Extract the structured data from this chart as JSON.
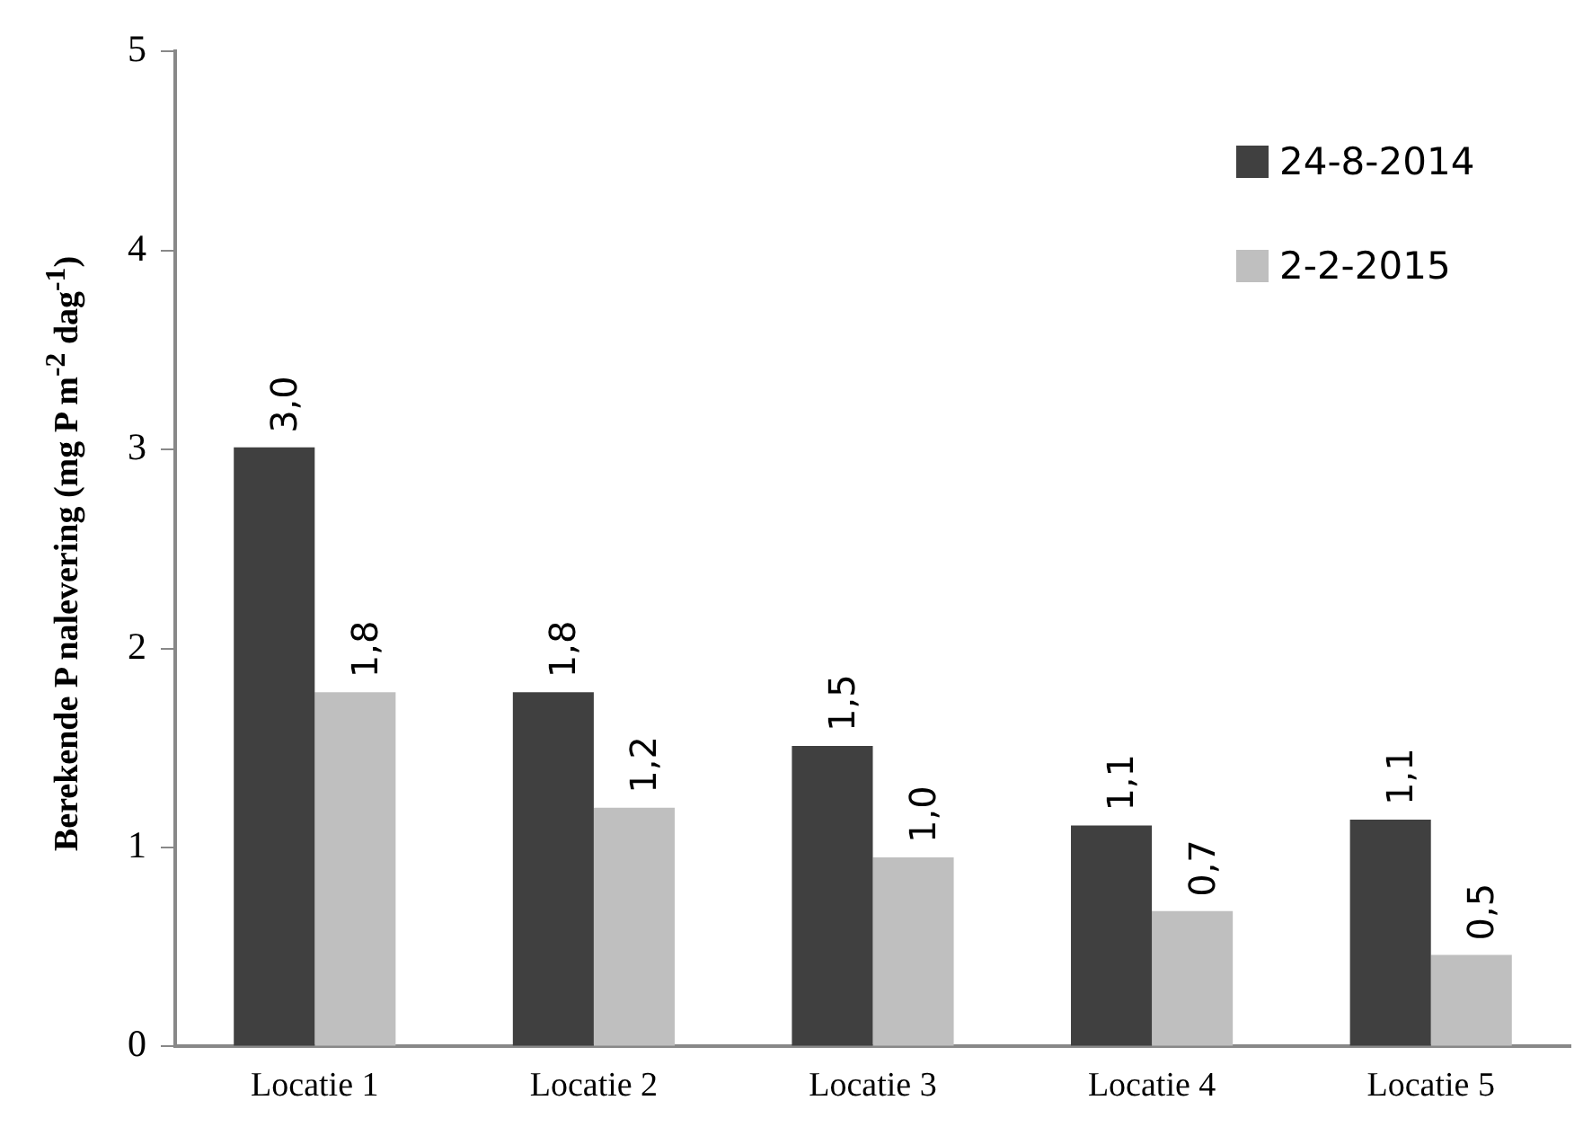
{
  "chart_data": {
    "type": "bar",
    "ylabel": "Berekende P nalevering (mg P m$^{-2}$ dag$^{-1}$)",
    "categories": [
      "Locatie 1",
      "Locatie 2",
      "Locatie 3",
      "Locatie 4",
      "Locatie 5"
    ],
    "series": [
      {
        "name": "24-8-2014",
        "color": "#404040",
        "values": [
          3.01,
          1.78,
          1.51,
          1.11,
          1.14
        ],
        "value_labels": [
          "3,0",
          "1,8",
          "1,5",
          "1,1",
          "1,1"
        ]
      },
      {
        "name": "2-2-2015",
        "color": "#bfbfbf",
        "values": [
          1.78,
          1.2,
          0.95,
          0.68,
          0.46
        ],
        "value_labels": [
          "1,8",
          "1,2",
          "1,0",
          "0,7",
          "0,5"
        ]
      }
    ],
    "ylim": [
      0,
      5
    ],
    "yticks": [
      0,
      1,
      2,
      3,
      4,
      5
    ],
    "grid": false,
    "legend": "top right"
  }
}
